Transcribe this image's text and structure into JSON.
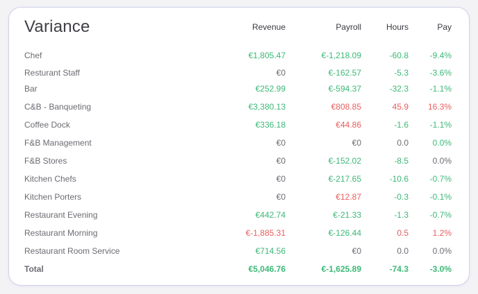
{
  "title": "Variance",
  "columns": {
    "revenue": "Revenue",
    "payroll": "Payroll",
    "hours": "Hours",
    "pay": "Pay"
  },
  "colors": {
    "positive": "#3cb877",
    "negative": "#e85d5d",
    "neutral": "#6b6b73"
  },
  "rows": [
    {
      "name": "Chef",
      "revenue": "€1,805.47",
      "revenue_tone": "green",
      "payroll": "€-1,218.09",
      "payroll_tone": "green",
      "hours": "-60.8",
      "hours_tone": "green",
      "pay": "-9.4%",
      "pay_tone": "green"
    },
    {
      "name": "Resturant Staff",
      "revenue": "€0",
      "revenue_tone": "neutral",
      "payroll": "€-162.57",
      "payroll_tone": "green",
      "hours": "-5.3",
      "hours_tone": "green",
      "pay": "-3.6%",
      "pay_tone": "green"
    },
    {
      "name": "Bar",
      "revenue": "€252.99",
      "revenue_tone": "green",
      "payroll": "€-594.37",
      "payroll_tone": "green",
      "hours": "-32.3",
      "hours_tone": "green",
      "pay": "-1.1%",
      "pay_tone": "green"
    },
    {
      "name": "C&B - Banqueting",
      "revenue": "€3,380.13",
      "revenue_tone": "green",
      "payroll": "€808.85",
      "payroll_tone": "red",
      "hours": "45.9",
      "hours_tone": "red",
      "pay": "16.3%",
      "pay_tone": "red"
    },
    {
      "name": "Coffee Dock",
      "revenue": "€336.18",
      "revenue_tone": "green",
      "payroll": "€44.86",
      "payroll_tone": "red",
      "hours": "-1.6",
      "hours_tone": "green",
      "pay": "-1.1%",
      "pay_tone": "green"
    },
    {
      "name": "F&B Management",
      "revenue": "€0",
      "revenue_tone": "neutral",
      "payroll": "€0",
      "payroll_tone": "neutral",
      "hours": "0.0",
      "hours_tone": "neutral",
      "pay": "0.0%",
      "pay_tone": "green"
    },
    {
      "name": "F&B Stores",
      "revenue": "€0",
      "revenue_tone": "neutral",
      "payroll": "€-152.02",
      "payroll_tone": "green",
      "hours": "-8.5",
      "hours_tone": "green",
      "pay": "0.0%",
      "pay_tone": "neutral"
    },
    {
      "name": "Kitchen Chefs",
      "revenue": "€0",
      "revenue_tone": "neutral",
      "payroll": "€-217.65",
      "payroll_tone": "green",
      "hours": "-10.6",
      "hours_tone": "green",
      "pay": "-0.7%",
      "pay_tone": "green"
    },
    {
      "name": "Kitchen Porters",
      "revenue": "€0",
      "revenue_tone": "neutral",
      "payroll": "€12.87",
      "payroll_tone": "red",
      "hours": "-0.3",
      "hours_tone": "green",
      "pay": "-0.1%",
      "pay_tone": "green"
    },
    {
      "name": "Restaurant Evening",
      "revenue": "€442.74",
      "revenue_tone": "green",
      "payroll": "€-21.33",
      "payroll_tone": "green",
      "hours": "-1.3",
      "hours_tone": "green",
      "pay": "-0.7%",
      "pay_tone": "green"
    },
    {
      "name": "Restaurant Morning",
      "revenue": "€-1,885.31",
      "revenue_tone": "red",
      "payroll": "€-126.44",
      "payroll_tone": "green",
      "hours": "0.5",
      "hours_tone": "red",
      "pay": "1.2%",
      "pay_tone": "red"
    },
    {
      "name": "Restaurant Room Service",
      "revenue": "€714.56",
      "revenue_tone": "green",
      "payroll": "€0",
      "payroll_tone": "neutral",
      "hours": "0.0",
      "hours_tone": "neutral",
      "pay": "0.0%",
      "pay_tone": "neutral"
    }
  ],
  "total": {
    "name": "Total",
    "revenue": "€5,046.76",
    "revenue_tone": "green",
    "payroll": "€-1,625.89",
    "payroll_tone": "green",
    "hours": "-74.3",
    "hours_tone": "green",
    "pay": "-3.0%",
    "pay_tone": "green"
  }
}
